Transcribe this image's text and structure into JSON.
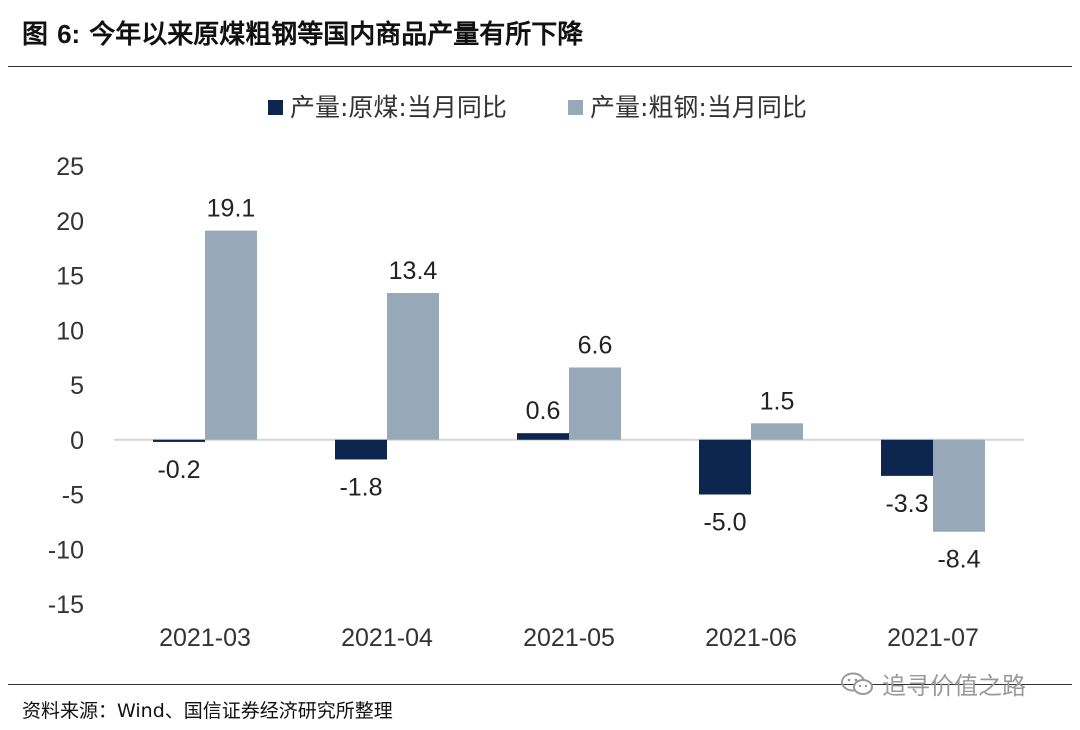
{
  "figure": {
    "title_prefix": "图 ",
    "title_number": "6:",
    "title_text": " 今年以来原煤粗钢等国内商品产量有所下降",
    "source": "资料来源：Wind、国信证券经济研究所整理",
    "watermark": "追寻价值之路",
    "watermark_icon": "wechat-icon"
  },
  "chart_data": {
    "type": "bar",
    "categories": [
      "2021-03",
      "2021-04",
      "2021-05",
      "2021-06",
      "2021-07"
    ],
    "series": [
      {
        "name": "产量:原煤:当月同比",
        "values": [
          -0.2,
          -1.8,
          0.6,
          -5.0,
          -3.3
        ],
        "color": "#0c2650"
      },
      {
        "name": "产量:粗钢:当月同比",
        "values": [
          19.1,
          13.4,
          6.6,
          1.5,
          -8.4
        ],
        "color": "#97a8b8"
      }
    ],
    "data_labels": [
      [
        "-0.2",
        "-1.8",
        "0.6",
        "-5.0",
        "-3.3"
      ],
      [
        "19.1",
        "13.4",
        "6.6",
        "1.5",
        "-8.4"
      ]
    ],
    "ylim": [
      -15,
      25
    ],
    "yticks": [
      25,
      20,
      15,
      10,
      5,
      0,
      -5,
      -10,
      -15
    ],
    "ytick_labels": [
      "25",
      "20",
      "15",
      "10",
      "5",
      "0",
      "-5",
      "-10",
      "-15"
    ],
    "grid": false,
    "legend_position": "top-center",
    "title": "",
    "xlabel": "",
    "ylabel": ""
  }
}
